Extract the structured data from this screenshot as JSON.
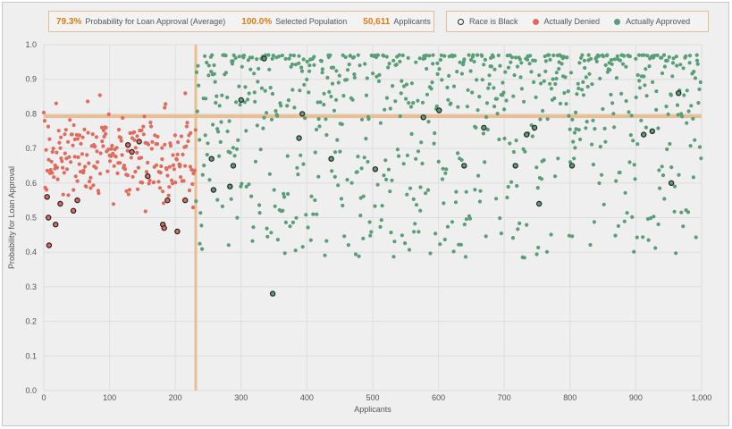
{
  "stats": [
    {
      "value": "79.3%",
      "label": "Probability for Loan Approval (Average)"
    },
    {
      "value": "100.0%",
      "label": "Selected Population"
    },
    {
      "value": "50,611",
      "label": "Applicants"
    }
  ],
  "legend": [
    {
      "label": "Race is Black",
      "color": "#2b2b2b",
      "style": "outline"
    },
    {
      "label": "Actually Denied",
      "color": "#e06b5d",
      "style": "filled"
    },
    {
      "label": "Actually Approved",
      "color": "#5a9e78",
      "style": "filled"
    }
  ],
  "chart_data": {
    "type": "scatter",
    "xlabel": "Applicants",
    "ylabel": "Probability for Loan Approval",
    "xlim": [
      0,
      1000
    ],
    "ylim": [
      0,
      1.0
    ],
    "x_ticks": [
      "0",
      "100",
      "200",
      "300",
      "400",
      "500",
      "600",
      "700",
      "800",
      "900",
      "1,000"
    ],
    "y_ticks": [
      "0.0",
      "0.1",
      "0.2",
      "0.3",
      "0.4",
      "0.5",
      "0.6",
      "0.7",
      "0.8",
      "0.9",
      "1.0"
    ],
    "grid": true,
    "threshold_x": 231,
    "threshold_y": 0.793,
    "reference_line_color": "#e8b98a",
    "series": [
      {
        "name": "Actually Denied",
        "color": "#e06b5d",
        "x_range": [
          0,
          231
        ],
        "y_range": [
          0.33,
          0.89
        ],
        "count": 230
      },
      {
        "name": "Actually Approved",
        "color": "#5a9e78",
        "x_range": [
          231,
          1000
        ],
        "y_range": [
          0.28,
          0.97
        ],
        "count": 770
      }
    ],
    "highlighted_points_black": [
      [
        5,
        0.56
      ],
      [
        7,
        0.5
      ],
      [
        8,
        0.42
      ],
      [
        18,
        0.48
      ],
      [
        25,
        0.54
      ],
      [
        45,
        0.52
      ],
      [
        51,
        0.55
      ],
      [
        128,
        0.71
      ],
      [
        134,
        0.69
      ],
      [
        145,
        0.72
      ],
      [
        158,
        0.62
      ],
      [
        181,
        0.48
      ],
      [
        183,
        0.47
      ],
      [
        188,
        0.55
      ],
      [
        203,
        0.46
      ],
      [
        215,
        0.55
      ],
      [
        255,
        0.67
      ],
      [
        258,
        0.58
      ],
      [
        283,
        0.59
      ],
      [
        288,
        0.65
      ],
      [
        300,
        0.84
      ],
      [
        335,
        0.96
      ],
      [
        348,
        0.28
      ],
      [
        388,
        0.73
      ],
      [
        393,
        0.8
      ],
      [
        437,
        0.67
      ],
      [
        504,
        0.64
      ],
      [
        577,
        0.79
      ],
      [
        601,
        0.81
      ],
      [
        639,
        0.65
      ],
      [
        669,
        0.76
      ],
      [
        717,
        0.65
      ],
      [
        734,
        0.74
      ],
      [
        746,
        0.76
      ],
      [
        753,
        0.54
      ],
      [
        803,
        0.65
      ],
      [
        912,
        0.74
      ],
      [
        925,
        0.75
      ],
      [
        954,
        0.6
      ],
      [
        965,
        0.86
      ]
    ]
  }
}
